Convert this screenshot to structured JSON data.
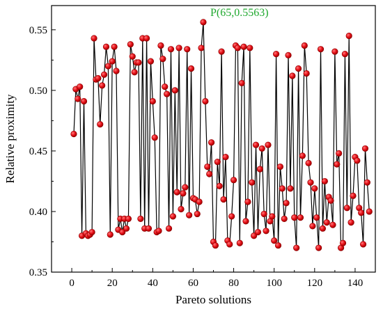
{
  "chart_data": {
    "type": "line",
    "title": "",
    "xlabel": "Pareto solutions",
    "ylabel": "Relative proximity",
    "xlim": [
      -10,
      150
    ],
    "ylim": [
      0.35,
      0.57
    ],
    "xticks": [
      0,
      20,
      40,
      60,
      80,
      100,
      120,
      140
    ],
    "xtick_labels": [
      "0",
      "20",
      "40",
      "60",
      "80",
      "100",
      "120",
      "140"
    ],
    "yticks": [
      0.35,
      0.4,
      0.45,
      0.5,
      0.55
    ],
    "ytick_labels": [
      "0.35",
      "0.40",
      "0.45",
      "0.50",
      "0.55"
    ],
    "grid": false,
    "legend": "none",
    "colors": {
      "line": "#000000",
      "marker": "#e8121b",
      "marker_edge": "#8a0000",
      "annotation": "#1fa82e"
    },
    "annotation": {
      "text": "P(65,0.5563)",
      "x": 65,
      "y": 0.5563
    },
    "series": [
      {
        "marker": "circle",
        "x": [
          1,
          2,
          3,
          4,
          5,
          6,
          7,
          8,
          9,
          10,
          11,
          12,
          13,
          14,
          15,
          16,
          17,
          18,
          19,
          20,
          21,
          22,
          23,
          24,
          25,
          26,
          27,
          28,
          29,
          30,
          31,
          32,
          33,
          34,
          35,
          36,
          37,
          38,
          39,
          40,
          41,
          42,
          43,
          44,
          45,
          46,
          47,
          48,
          49,
          50,
          51,
          52,
          53,
          54,
          55,
          56,
          57,
          58,
          59,
          60,
          61,
          62,
          63,
          64,
          65,
          66,
          67,
          68,
          69,
          70,
          71,
          72,
          73,
          74,
          75,
          76,
          77,
          78,
          79,
          80,
          81,
          82,
          83,
          84,
          85,
          86,
          87,
          88,
          89,
          90,
          91,
          92,
          93,
          94,
          95,
          96,
          97,
          98,
          99,
          100,
          101,
          102,
          103,
          104,
          105,
          106,
          107,
          108,
          109,
          110,
          111,
          112,
          113,
          114,
          115,
          116,
          117,
          118,
          119,
          120,
          121,
          122,
          123,
          124,
          125,
          126,
          127,
          128,
          129,
          130,
          131,
          132,
          133,
          134,
          135,
          136,
          137,
          138,
          139,
          140,
          141,
          142,
          143,
          144,
          145,
          146,
          147
        ],
        "values": [
          0.464,
          0.501,
          0.493,
          0.503,
          0.38,
          0.491,
          0.382,
          0.38,
          0.381,
          0.383,
          0.543,
          0.509,
          0.51,
          0.472,
          0.504,
          0.513,
          0.536,
          0.52,
          0.381,
          0.524,
          0.536,
          0.516,
          0.385,
          0.394,
          0.383,
          0.394,
          0.386,
          0.394,
          0.538,
          0.528,
          0.515,
          0.523,
          0.523,
          0.394,
          0.543,
          0.386,
          0.543,
          0.386,
          0.524,
          0.491,
          0.461,
          0.383,
          0.384,
          0.537,
          0.526,
          0.503,
          0.497,
          0.386,
          0.534,
          0.396,
          0.5,
          0.416,
          0.535,
          0.402,
          0.415,
          0.42,
          0.534,
          0.397,
          0.518,
          0.411,
          0.41,
          0.398,
          0.408,
          0.535,
          0.5563,
          0.491,
          0.437,
          0.431,
          0.457,
          0.375,
          0.372,
          0.441,
          0.421,
          0.532,
          0.41,
          0.445,
          0.376,
          0.373,
          0.396,
          0.426,
          0.537,
          0.535,
          0.374,
          0.506,
          0.536,
          0.392,
          0.408,
          0.535,
          0.424,
          0.38,
          0.455,
          0.383,
          0.435,
          0.452,
          0.398,
          0.384,
          0.455,
          0.392,
          0.396,
          0.376,
          0.53,
          0.372,
          0.437,
          0.419,
          0.394,
          0.407,
          0.529,
          0.419,
          0.512,
          0.395,
          0.37,
          0.518,
          0.395,
          0.446,
          0.537,
          0.514,
          0.44,
          0.424,
          0.388,
          0.419,
          0.395,
          0.37,
          0.534,
          0.386,
          0.425,
          0.391,
          0.412,
          0.409,
          0.389,
          0.532,
          0.439,
          0.448,
          0.37,
          0.374,
          0.53,
          0.403,
          0.545,
          0.391,
          0.413,
          0.445,
          0.442,
          0.403,
          0.399,
          0.373,
          0.452,
          0.424,
          0.4
        ]
      }
    ]
  }
}
